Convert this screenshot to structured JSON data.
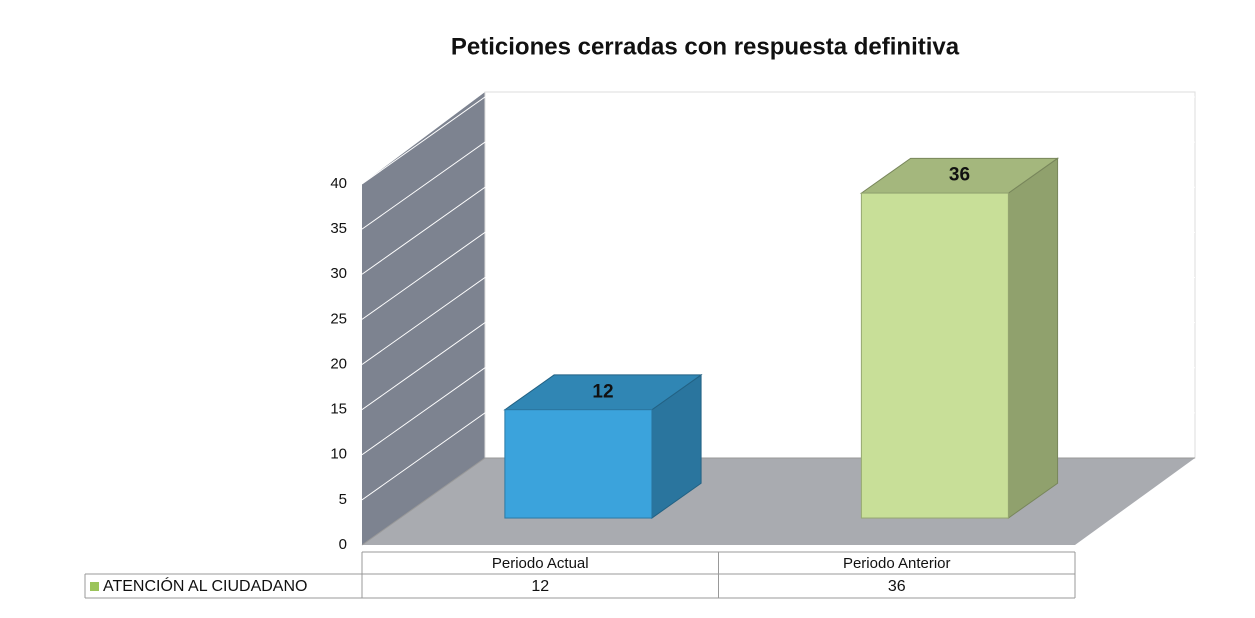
{
  "chart_data": {
    "type": "bar3d",
    "title": "Peticiones cerradas con respuesta definitiva",
    "categories": [
      "Periodo Actual",
      "Periodo Anterior"
    ],
    "series": [
      {
        "name": "ATENCIÓN AL CIUDADANO",
        "color": "#9bc45a",
        "point_colors": [
          "#3ba3dc",
          "#c8df98"
        ],
        "values": [
          12,
          36
        ]
      }
    ],
    "ylim": [
      0,
      40
    ],
    "yticks": [
      0,
      5,
      10,
      15,
      20,
      25,
      30,
      35,
      40
    ],
    "grid": true,
    "data_table": true
  }
}
